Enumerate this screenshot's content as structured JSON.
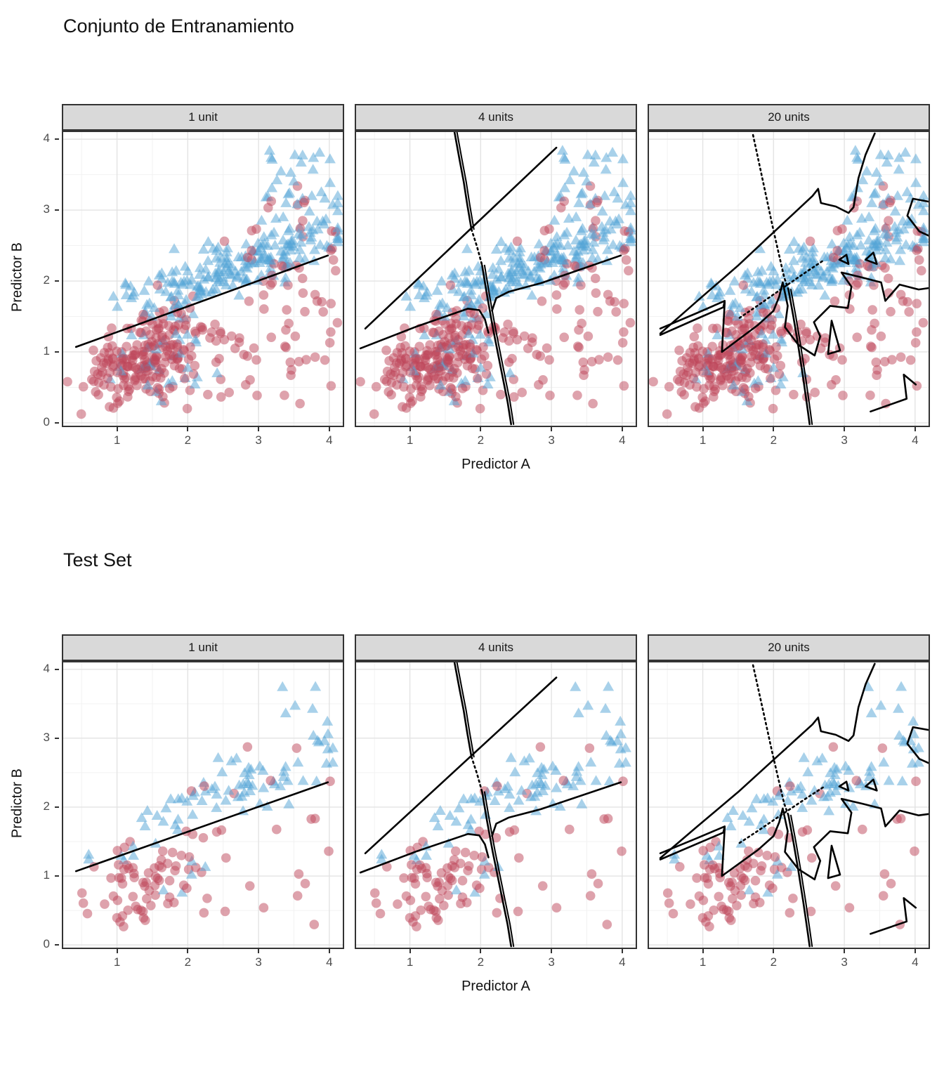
{
  "figures": [
    {
      "title": "Conjunto de Entranamiento",
      "dataset": "train"
    },
    {
      "title": "Test Set",
      "dataset": "test"
    }
  ],
  "chart_data": {
    "type": "scatter",
    "facets": [
      "1 unit",
      "4 units",
      "20 units"
    ],
    "xlabel": "Predictor A",
    "ylabel": "Predictor B",
    "xticks": [
      1,
      2,
      3,
      4
    ],
    "yticks": [
      0,
      1,
      2,
      3,
      4
    ],
    "xlim": [
      0.22,
      4.21
    ],
    "ylim": [
      -0.06,
      4.12
    ],
    "grid": {
      "major": "#e3e3e3",
      "minor": "#f2f2f2"
    },
    "panel_border": "#333333",
    "strip_style": {
      "fill": "#d9d9d9",
      "border": "#333333",
      "text": "#1a1a1a"
    },
    "classes": {
      "circles": {
        "marker": "circle",
        "color": "rgba(190,70,90,0.5)",
        "radius": 6.8
      },
      "triangles": {
        "marker": "triangle",
        "color": "rgba(81,163,213,0.5)",
        "size": 16
      }
    },
    "boundary_color": "#000000",
    "scatter": {
      "note": "points are dense gaussian/band clusters; regenerated deterministically from these specs",
      "seeds": {
        "train": 20240,
        "test": 913
      },
      "train": {
        "circles": [
          {
            "type": "gauss",
            "n": 170,
            "mx": 1.35,
            "my": 0.92,
            "sx": 0.42,
            "sy": 0.3,
            "corr": 0.4
          },
          {
            "type": "band",
            "n": 95,
            "x": [
              0.9,
              4.15
            ],
            "ylow": [
              0.18,
              0.0
            ],
            "yhigh": [
              1.25,
              0.3
            ]
          },
          {
            "type": "box",
            "n": 15,
            "x": [
              2.5,
              4.15
            ],
            "y": [
              2.2,
              2.95
            ]
          },
          {
            "type": "box",
            "n": 6,
            "x": [
              2.6,
              3.8
            ],
            "y": [
              2.95,
              3.4
            ]
          }
        ],
        "triangles": [
          {
            "type": "linegauss",
            "n": 200,
            "mx": 2.6,
            "sx": 0.78,
            "clipx": [
              0.5,
              4.12
            ],
            "a": 1.23,
            "b": 0.37,
            "sy": 0.21
          },
          {
            "type": "box",
            "n": 30,
            "x": [
              3.1,
              4.05
            ],
            "y": [
              2.8,
              3.85
            ]
          },
          {
            "type": "gauss",
            "n": 25,
            "mx": 1.6,
            "my": 1.15,
            "sx": 0.45,
            "sy": 0.35,
            "corr": 0.3
          },
          {
            "type": "box",
            "n": 12,
            "x": [
              0.9,
              2.6
            ],
            "y": [
              0.25,
              0.95
            ]
          }
        ]
      },
      "test": {
        "circles": [
          {
            "type": "gauss",
            "n": 55,
            "mx": 1.3,
            "my": 0.9,
            "sx": 0.38,
            "sy": 0.28,
            "corr": 0.4
          },
          {
            "type": "band",
            "n": 30,
            "x": [
              0.9,
              4.1
            ],
            "ylow": [
              0.2,
              0.0
            ],
            "yhigh": [
              1.2,
              0.3
            ]
          },
          {
            "type": "box",
            "n": 6,
            "x": [
              2.0,
              3.6
            ],
            "y": [
              2.1,
              3.05
            ]
          }
        ],
        "triangles": [
          {
            "type": "linegauss",
            "n": 70,
            "mx": 2.6,
            "sx": 0.8,
            "clipx": [
              0.6,
              4.05
            ],
            "a": 1.25,
            "b": 0.37,
            "sy": 0.2
          },
          {
            "type": "box",
            "n": 8,
            "x": [
              3.3,
              4.05
            ],
            "y": [
              2.9,
              3.75
            ]
          },
          {
            "type": "box",
            "n": 8,
            "x": [
              1.0,
              2.9
            ],
            "y": [
              0.6,
              1.3
            ]
          }
        ]
      }
    },
    "boundaries": {
      "1 unit": [
        {
          "points": [
            [
              0.42,
              1.07
            ],
            [
              3.98,
              2.36
            ]
          ],
          "dash": "solid"
        }
      ],
      "4 units": [
        {
          "points": [
            [
              0.37,
              1.33
            ],
            [
              3.07,
              3.88
            ]
          ],
          "dash": "solid"
        },
        {
          "points": [
            [
              1.63,
              4.1
            ],
            [
              1.7,
              3.72
            ],
            [
              1.76,
              3.4
            ],
            [
              1.81,
              3.08
            ],
            [
              1.87,
              2.73
            ]
          ],
          "dash": "solid",
          "double": true
        },
        {
          "points": [
            [
              1.87,
              2.73
            ],
            [
              1.95,
              2.48
            ],
            [
              2.02,
              2.22
            ]
          ],
          "dash": "dotted"
        },
        {
          "points": [
            [
              2.02,
              2.22
            ],
            [
              2.09,
              1.8
            ],
            [
              2.17,
              1.35
            ],
            [
              2.28,
              0.8
            ],
            [
              2.38,
              0.3
            ],
            [
              2.43,
              -0.02
            ]
          ],
          "dash": "solid",
          "double": true
        },
        {
          "points": [
            [
              0.3,
              1.05
            ],
            [
              1.1,
              1.36
            ],
            [
              1.82,
              1.61
            ],
            [
              1.98,
              1.59
            ],
            [
              2.06,
              1.46
            ],
            [
              2.11,
              1.27
            ]
          ],
          "dash": "solid"
        },
        {
          "points": [
            [
              2.16,
              1.58
            ],
            [
              2.22,
              1.76
            ],
            [
              2.4,
              1.85
            ],
            [
              2.85,
              1.97
            ],
            [
              3.98,
              2.36
            ]
          ],
          "dash": "solid"
        }
      ],
      "20 units": [
        {
          "points": [
            [
              1.71,
              4.06
            ],
            [
              1.8,
              3.64
            ],
            [
              1.89,
              3.22
            ],
            [
              1.98,
              2.8
            ],
            [
              2.07,
              2.4
            ],
            [
              2.15,
              2.05
            ],
            [
              2.21,
              1.88
            ]
          ],
          "dash": "dotted"
        },
        {
          "points": [
            [
              2.21,
              1.88
            ],
            [
              2.28,
              1.5
            ],
            [
              2.35,
              1.08
            ],
            [
              2.42,
              0.62
            ],
            [
              2.48,
              0.2
            ],
            [
              2.51,
              -0.02
            ]
          ],
          "dash": "solid",
          "double": true
        },
        {
          "points": [
            [
              1.52,
              1.48
            ],
            [
              1.8,
              1.67
            ],
            [
              2.1,
              1.88
            ],
            [
              2.45,
              2.12
            ],
            [
              2.72,
              2.3
            ]
          ],
          "dash": "dotted"
        },
        {
          "points": [
            [
              0.4,
              1.26
            ],
            [
              0.9,
              1.7
            ],
            [
              1.5,
              2.22
            ],
            [
              2.1,
              2.78
            ],
            [
              2.55,
              3.2
            ],
            [
              2.63,
              3.3
            ],
            [
              2.67,
              3.1
            ],
            [
              2.88,
              3.05
            ],
            [
              3.06,
              2.96
            ],
            [
              3.13,
              3.04
            ],
            [
              3.2,
              3.45
            ],
            [
              3.3,
              3.78
            ],
            [
              3.43,
              4.08
            ]
          ],
          "dash": "solid"
        },
        {
          "points": [
            [
              0.4,
              1.33
            ],
            [
              0.92,
              1.55
            ],
            [
              1.31,
              1.72
            ],
            [
              1.29,
              1.63
            ],
            [
              0.9,
              1.46
            ],
            [
              0.4,
              1.24
            ]
          ],
          "dash": "solid"
        },
        {
          "points": [
            [
              1.31,
              1.7
            ],
            [
              1.27,
              1.0
            ],
            [
              1.78,
              1.38
            ],
            [
              2.0,
              1.58
            ],
            [
              2.08,
              1.78
            ],
            [
              2.13,
              1.98
            ],
            [
              2.2,
              1.65
            ],
            [
              2.16,
              1.35
            ],
            [
              2.35,
              1.1
            ],
            [
              2.58,
              0.95
            ],
            [
              2.66,
              1.22
            ],
            [
              2.57,
              1.42
            ],
            [
              2.8,
              1.65
            ],
            [
              3.05,
              1.62
            ],
            [
              3.1,
              1.92
            ],
            [
              2.96,
              2.12
            ],
            [
              3.25,
              2.05
            ],
            [
              3.52,
              1.98
            ],
            [
              3.58,
              1.72
            ],
            [
              3.78,
              1.95
            ],
            [
              4.05,
              1.88
            ],
            [
              4.19,
              1.9
            ]
          ],
          "dash": "solid"
        },
        {
          "points": [
            [
              2.93,
              2.3
            ],
            [
              3.06,
              2.24
            ],
            [
              3.03,
              2.37
            ],
            [
              2.93,
              2.3
            ]
          ],
          "dash": "solid"
        },
        {
          "points": [
            [
              3.3,
              2.3
            ],
            [
              3.46,
              2.24
            ],
            [
              3.41,
              2.4
            ],
            [
              3.3,
              2.3
            ]
          ],
          "dash": "solid"
        },
        {
          "points": [
            [
              4.19,
              3.12
            ],
            [
              3.97,
              3.16
            ],
            [
              3.89,
              2.92
            ],
            [
              4.06,
              2.7
            ],
            [
              4.19,
              2.64
            ]
          ],
          "dash": "solid"
        },
        {
          "points": [
            [
              2.82,
              1.44
            ],
            [
              2.94,
              1.02
            ],
            [
              2.77,
              0.97
            ],
            [
              2.82,
              1.44
            ]
          ],
          "dash": "solid"
        },
        {
          "points": [
            [
              3.37,
              0.16
            ],
            [
              3.88,
              0.34
            ],
            [
              3.84,
              0.68
            ],
            [
              4.01,
              0.54
            ]
          ],
          "dash": "solid"
        }
      ]
    }
  }
}
